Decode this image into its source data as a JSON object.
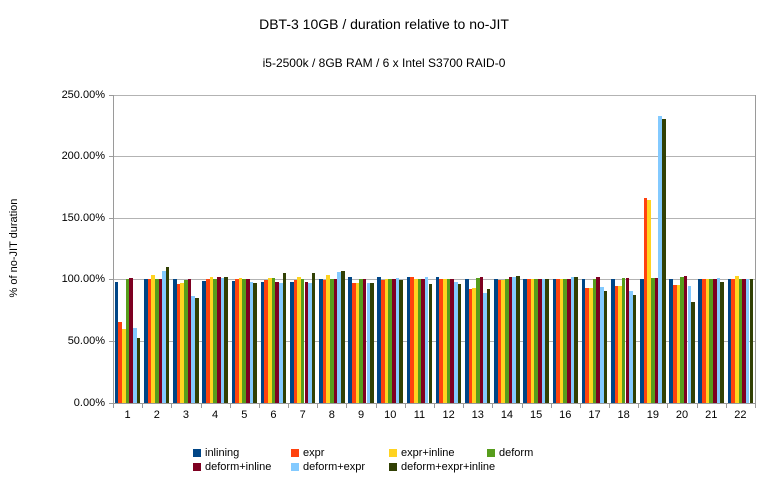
{
  "chart": {
    "title": "DBT-3 10GB / duration relative to no-JIT",
    "subtitle": "i5-2500k / 8GB RAM / 6 x Intel S3700 RAID-0",
    "y_axis_title": "% of no-JIT duration"
  },
  "chart_data": {
    "type": "bar",
    "title": "DBT-3 10GB / duration relative to no-JIT",
    "subtitle": "i5-2500k / 8GB RAM / 6 x Intel S3700 RAID-0",
    "xlabel": "",
    "ylabel": "% of no-JIT duration",
    "ylim": [
      0,
      250
    ],
    "grid": true,
    "legend_position": "bottom",
    "y_ticks": [
      "0.00%",
      "50.00%",
      "100.00%",
      "150.00%",
      "200.00%",
      "250.00%"
    ],
    "categories": [
      "1",
      "2",
      "3",
      "4",
      "5",
      "6",
      "7",
      "8",
      "9",
      "10",
      "11",
      "12",
      "13",
      "14",
      "15",
      "16",
      "17",
      "18",
      "19",
      "20",
      "21",
      "22"
    ],
    "series": [
      {
        "name": "inlining",
        "color": "#004586",
        "values": [
          98,
          100.5,
          100.5,
          99,
          99,
          98.5,
          98.5,
          100.5,
          102,
          102.5,
          102,
          102.5,
          101,
          100.5,
          100.5,
          100.5,
          101,
          101,
          101,
          101,
          101,
          100.5
        ]
      },
      {
        "name": "expr",
        "color": "#FF420E",
        "values": [
          66,
          101,
          96.5,
          100.5,
          100.5,
          100,
          100,
          100,
          97.5,
          100,
          102.5,
          100.5,
          92.5,
          100,
          100.5,
          100.5,
          93,
          95,
          166.5,
          96,
          101,
          100.5
        ]
      },
      {
        "name": "expr+inline",
        "color": "#FFD320",
        "values": [
          60,
          104,
          97,
          102.5,
          101.5,
          101.5,
          102,
          103.5,
          97.5,
          100.5,
          101,
          101,
          93,
          100,
          100.5,
          100.5,
          93,
          95,
          165,
          95.5,
          100.5,
          103
        ]
      },
      {
        "name": "deform",
        "color": "#579D1C",
        "values": [
          100.5,
          101,
          100,
          101,
          101,
          101.5,
          101,
          100.5,
          101,
          100.5,
          101,
          100.5,
          101.5,
          101,
          101,
          101,
          101,
          101.5,
          101.5,
          102,
          101,
          100.5
        ]
      },
      {
        "name": "deform+inline",
        "color": "#7E0021",
        "values": [
          101.5,
          101,
          101,
          102,
          100.5,
          98.5,
          98,
          101,
          100.5,
          100.5,
          101,
          101,
          102,
          102,
          101,
          101,
          102.5,
          101.5,
          101.5,
          103,
          101,
          100.5
        ]
      },
      {
        "name": "deform+expr",
        "color": "#83CAFF",
        "values": [
          61,
          107,
          86.5,
          101.5,
          98.5,
          97,
          97.5,
          106,
          97,
          101.5,
          102,
          98,
          89,
          102.5,
          100.5,
          102,
          94.5,
          91,
          233,
          95,
          101.5,
          100.5
        ]
      },
      {
        "name": "deform+expr+inline",
        "color": "#314004",
        "values": [
          52.5,
          110,
          85.5,
          102.5,
          97,
          105.5,
          105.5,
          107.5,
          97,
          100,
          96.5,
          96.5,
          92.5,
          103,
          101,
          102,
          91,
          88,
          230.5,
          82,
          98.5,
          100.5
        ]
      }
    ]
  }
}
